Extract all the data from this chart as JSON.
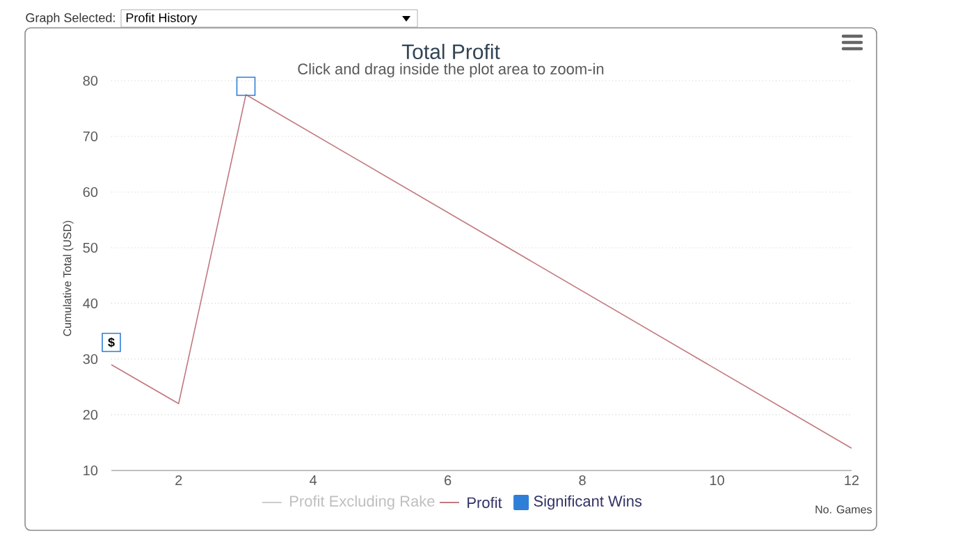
{
  "chart_data": {
    "type": "line",
    "title": "Total Profit",
    "subtitle": "Click and drag inside the plot area to zoom-in",
    "xlabel": "No. Games",
    "ylabel": "Cumulative Total (USD)",
    "x": [
      1,
      2,
      3,
      12
    ],
    "xlim": [
      1,
      12
    ],
    "xticks": [
      2,
      4,
      6,
      8,
      10,
      12
    ],
    "ylim": [
      10,
      80
    ],
    "yticks": [
      10,
      20,
      30,
      40,
      50,
      60,
      70,
      80
    ],
    "grid": "y",
    "legend": "bottom",
    "marker": "none",
    "line_style": "solid",
    "series": [
      {
        "name": "Profit Excluding Rake",
        "color": "#cccccc",
        "values": [
          null,
          null,
          null,
          null
        ]
      },
      {
        "name": "Profit",
        "color": "#c0787e",
        "values": [
          29,
          22,
          77.5,
          14
        ]
      },
      {
        "name": "Significant Wins",
        "type": "scatter",
        "marker": "square",
        "color": "#2f7ed8",
        "x": [
          1,
          3
        ],
        "values": [
          33,
          79
        ]
      }
    ],
    "annotations": [
      "Graph Selected:",
      "Profit History",
      {
        "text": "$",
        "x": 1,
        "y": 33
      }
    ]
  }
}
